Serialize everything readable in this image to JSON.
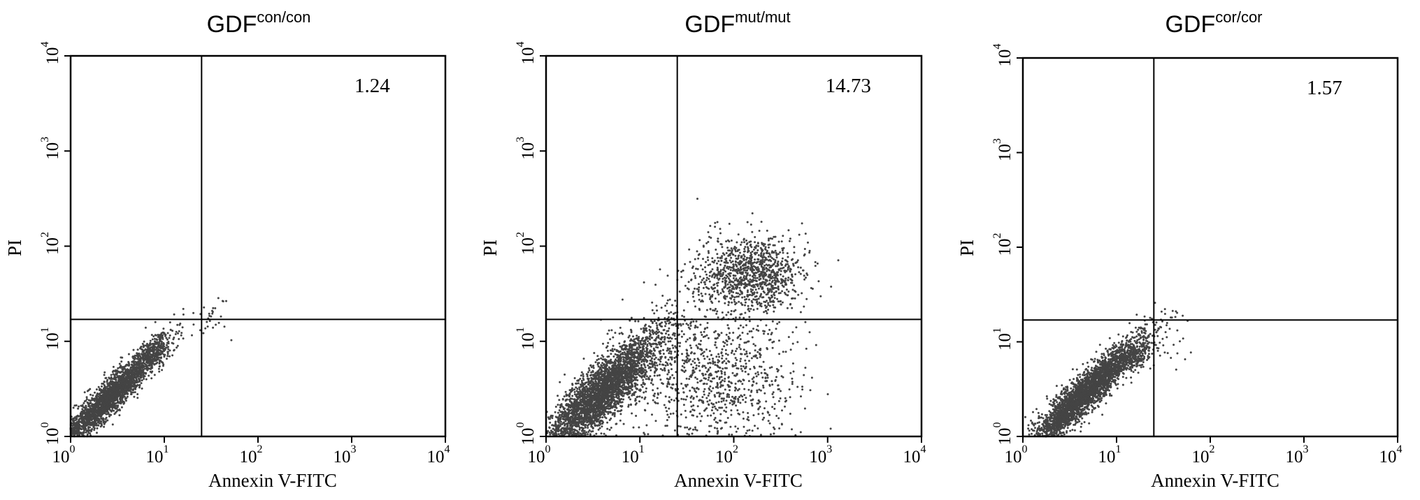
{
  "chart_data": [
    {
      "type": "scatter",
      "title": "GDF",
      "title_sup": "con/con",
      "xlabel": "Annexin V-FITC",
      "ylabel": "PI",
      "xscale": "log",
      "yscale": "log",
      "xlim": [
        1,
        10000
      ],
      "ylim": [
        1,
        10000
      ],
      "xticks": [
        {
          "base": "10",
          "exp": "0"
        },
        {
          "base": "10",
          "exp": "1"
        },
        {
          "base": "10",
          "exp": "2"
        },
        {
          "base": "10",
          "exp": "3"
        },
        {
          "base": "10",
          "exp": "4"
        }
      ],
      "yticks": [
        {
          "base": "10",
          "exp": "0"
        },
        {
          "base": "10",
          "exp": "1"
        },
        {
          "base": "10",
          "exp": "2"
        },
        {
          "base": "10",
          "exp": "3"
        },
        {
          "base": "10",
          "exp": "4"
        }
      ],
      "gate": {
        "x": 25,
        "y": 17
      },
      "quadrant_label": "1.24",
      "populations": [
        {
          "kind": "diag",
          "n": 2600,
          "xc": 2.6,
          "yc": 2.6,
          "sd_along": 0.38,
          "sd_across": 0.07
        },
        {
          "kind": "diag",
          "n": 220,
          "xc": 8,
          "yc": 8,
          "sd_along": 0.12,
          "sd_across": 0.06
        },
        {
          "kind": "blob",
          "n": 30,
          "xc": 32,
          "yc": 17,
          "sdx": 0.12,
          "sdy": 0.13
        }
      ],
      "seed": 11,
      "grid": false,
      "legend": false
    },
    {
      "type": "scatter",
      "title": "GDF",
      "title_sup": "mut/mut",
      "xlabel": "Annexin V-FITC",
      "ylabel": "PI",
      "xscale": "log",
      "yscale": "log",
      "xlim": [
        1,
        10000
      ],
      "ylim": [
        1,
        10000
      ],
      "xticks": [
        {
          "base": "10",
          "exp": "0"
        },
        {
          "base": "10",
          "exp": "1"
        },
        {
          "base": "10",
          "exp": "2"
        },
        {
          "base": "10",
          "exp": "3"
        },
        {
          "base": "10",
          "exp": "4"
        }
      ],
      "yticks": [
        {
          "base": "10",
          "exp": "0"
        },
        {
          "base": "10",
          "exp": "1"
        },
        {
          "base": "10",
          "exp": "2"
        },
        {
          "base": "10",
          "exp": "3"
        },
        {
          "base": "10",
          "exp": "4"
        }
      ],
      "gate": {
        "x": 25,
        "y": 17
      },
      "quadrant_label": "14.73",
      "populations": [
        {
          "kind": "diag",
          "n": 3400,
          "xc": 4,
          "yc": 2.9,
          "sd_along": 0.42,
          "sd_across": 0.12
        },
        {
          "kind": "blob",
          "n": 1100,
          "xc": 150,
          "yc": 50,
          "sdx": 0.3,
          "sdy": 0.2
        },
        {
          "kind": "blob",
          "n": 1000,
          "xc": 60,
          "yc": 4,
          "sdx": 0.45,
          "sdy": 0.38
        }
      ],
      "seed": 23,
      "grid": false,
      "legend": false
    },
    {
      "type": "scatter",
      "title": "GDF",
      "title_sup": "cor/cor",
      "xlabel": "Annexin V-FITC",
      "ylabel": "PI",
      "xscale": "log",
      "yscale": "log",
      "xlim": [
        1,
        10000
      ],
      "ylim": [
        1,
        10000
      ],
      "xticks": [
        {
          "base": "10",
          "exp": "0"
        },
        {
          "base": "10",
          "exp": "1"
        },
        {
          "base": "10",
          "exp": "2"
        },
        {
          "base": "10",
          "exp": "3"
        },
        {
          "base": "10",
          "exp": "4"
        }
      ],
      "yticks": [
        {
          "base": "10",
          "exp": "0"
        },
        {
          "base": "10",
          "exp": "1"
        },
        {
          "base": "10",
          "exp": "2"
        },
        {
          "base": "10",
          "exp": "3"
        },
        {
          "base": "10",
          "exp": "4"
        }
      ],
      "gate": {
        "x": 25,
        "y": 17
      },
      "quadrant_label": "1.57",
      "populations": [
        {
          "kind": "diag",
          "n": 2900,
          "xc": 4.5,
          "yc": 2.8,
          "sd_along": 0.4,
          "sd_across": 0.08
        },
        {
          "kind": "diag",
          "n": 250,
          "xc": 16,
          "yc": 7,
          "sd_along": 0.13,
          "sd_across": 0.07
        },
        {
          "kind": "blob",
          "n": 35,
          "xc": 35,
          "yc": 12,
          "sdx": 0.1,
          "sdy": 0.15
        }
      ],
      "seed": 37,
      "grid": false,
      "legend": false
    }
  ]
}
